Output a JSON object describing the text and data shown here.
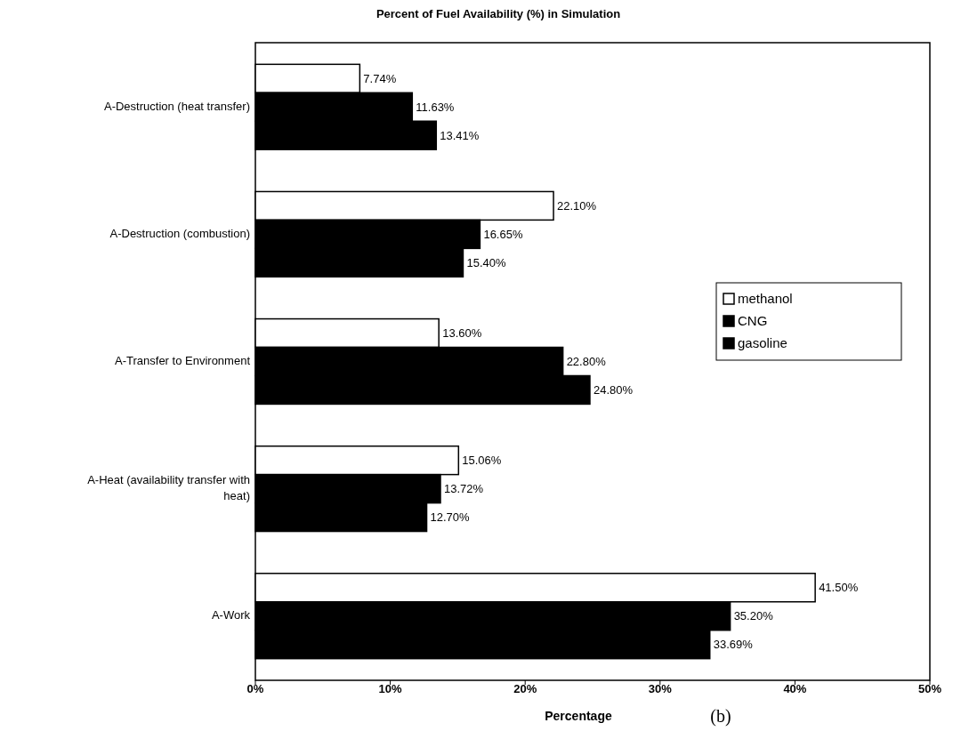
{
  "chart_data": {
    "type": "bar",
    "orientation": "horizontal",
    "title": "Percent of Fuel Availability (%) in Simulation",
    "xlabel": "Percentage",
    "annotations": [
      "(b)"
    ],
    "categories": [
      "A-Destruction (heat transfer)",
      "A-Destruction (combustion)",
      "A-Transfer to Environment",
      "A-Heat (availability transfer with heat)",
      "A-Work"
    ],
    "series": [
      {
        "name": "methanol",
        "color": "#ffffff",
        "values": [
          7.74,
          22.1,
          13.6,
          15.06,
          41.5
        ],
        "value_labels": [
          "7.74%",
          "22.10%",
          "13.60%",
          "15.06%",
          "41.50%"
        ]
      },
      {
        "name": "CNG",
        "color": "#000000",
        "values": [
          11.63,
          16.65,
          22.8,
          13.72,
          35.2
        ],
        "value_labels": [
          "11.63%",
          "16.65%",
          "22.80%",
          "13.72%",
          "35.20%"
        ]
      },
      {
        "name": "gasoline",
        "color": "#000000",
        "values": [
          13.41,
          15.4,
          24.8,
          12.7,
          33.69
        ],
        "value_labels": [
          "13.41%",
          "15.40%",
          "24.80%",
          "12.70%",
          "33.69%"
        ]
      }
    ],
    "xlim": [
      0,
      50
    ],
    "xticks": [
      {
        "value": 0,
        "label": "0%"
      },
      {
        "value": 10,
        "label": "10%"
      },
      {
        "value": 20,
        "label": "20%"
      },
      {
        "value": 30,
        "label": "30%"
      },
      {
        "value": 40,
        "label": "40%"
      },
      {
        "value": 50,
        "label": "50%"
      }
    ],
    "legend": "right",
    "grid": false
  }
}
